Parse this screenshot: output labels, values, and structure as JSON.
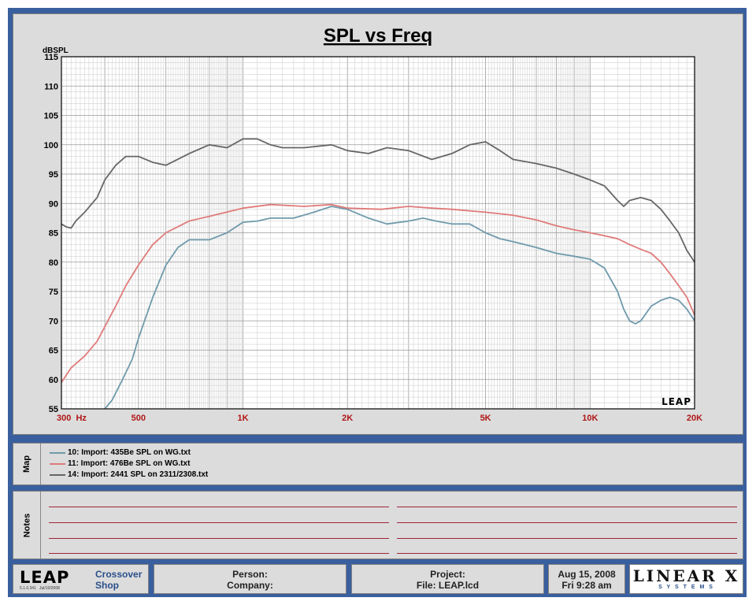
{
  "chart_data": {
    "type": "line",
    "title": "SPL vs Freq",
    "ylabel": "dBSPL",
    "xscale": "log",
    "xlim": [
      300,
      20000
    ],
    "ylim": [
      55,
      115
    ],
    "grid": true,
    "yticks": [
      55,
      60,
      65,
      70,
      75,
      80,
      85,
      90,
      95,
      100,
      105,
      110,
      115
    ],
    "xtick_labels": [
      {
        "value": 300,
        "label": "300  Hz"
      },
      {
        "value": 500,
        "label": "500"
      },
      {
        "value": 1000,
        "label": "1K"
      },
      {
        "value": 2000,
        "label": "2K"
      },
      {
        "value": 5000,
        "label": "5K"
      },
      {
        "value": 10000,
        "label": "10K"
      },
      {
        "value": 20000,
        "label": "20K"
      }
    ],
    "watermark": "LEAP",
    "series": [
      {
        "name": "10: Import: 435Be SPL on WG.txt",
        "color": "#6f9aab",
        "x": [
          400,
          420,
          450,
          480,
          500,
          550,
          600,
          650,
          700,
          800,
          900,
          1000,
          1100,
          1200,
          1400,
          1600,
          1800,
          2000,
          2300,
          2600,
          3000,
          3300,
          3600,
          4000,
          4500,
          5000,
          5500,
          6000,
          7000,
          8000,
          9000,
          10000,
          11000,
          12000,
          12500,
          13000,
          13500,
          14000,
          15000,
          16000,
          17000,
          18000,
          19000,
          20000
        ],
        "y": [
          55,
          56.5,
          60,
          63.5,
          67,
          74,
          79.5,
          82.5,
          83.8,
          83.8,
          85,
          86.8,
          87,
          87.5,
          87.5,
          88.5,
          89.5,
          89,
          87.5,
          86.5,
          87,
          87.5,
          87,
          86.5,
          86.5,
          85,
          84,
          83.5,
          82.5,
          81.5,
          81,
          80.5,
          79,
          75,
          72,
          70,
          69.5,
          70,
          72.5,
          73.5,
          74,
          73.5,
          72,
          70
        ]
      },
      {
        "name": "11: Import: 476Be SPL on WG.txt",
        "color": "#e07a7a",
        "x": [
          300,
          320,
          350,
          380,
          400,
          430,
          460,
          500,
          550,
          600,
          700,
          800,
          1000,
          1200,
          1500,
          1800,
          2000,
          2500,
          3000,
          3500,
          4000,
          5000,
          6000,
          7000,
          8000,
          9000,
          10000,
          11000,
          12000,
          13000,
          14000,
          15000,
          16000,
          17000,
          18000,
          19000,
          20000
        ],
        "y": [
          59.5,
          62,
          64,
          66.5,
          69,
          72.5,
          76,
          79.5,
          83,
          85,
          87,
          87.8,
          89.2,
          89.8,
          89.5,
          89.8,
          89.2,
          89,
          89.5,
          89.2,
          89,
          88.5,
          88,
          87.2,
          86.2,
          85.5,
          85,
          84.5,
          84,
          83,
          82.2,
          81.5,
          80,
          78,
          76,
          74,
          71
        ]
      },
      {
        "name": "14: Import: 2441 SPL on 2311/2308.txt",
        "color": "#666666",
        "x": [
          300,
          310,
          320,
          330,
          350,
          380,
          400,
          430,
          460,
          500,
          550,
          600,
          700,
          800,
          900,
          1000,
          1100,
          1200,
          1300,
          1500,
          1800,
          2000,
          2300,
          2600,
          3000,
          3500,
          4000,
          4500,
          5000,
          5500,
          6000,
          7000,
          8000,
          9000,
          10000,
          11000,
          12000,
          12500,
          13000,
          14000,
          15000,
          16000,
          17000,
          18000,
          19000,
          20000
        ],
        "y": [
          86.5,
          86,
          85.8,
          87,
          88.5,
          91,
          94,
          96.5,
          98,
          98,
          97,
          96.5,
          98.5,
          100,
          99.5,
          101,
          101,
          100,
          99.5,
          99.5,
          100,
          99,
          98.5,
          99.5,
          99,
          97.5,
          98.5,
          100,
          100.5,
          99,
          97.5,
          96.8,
          96,
          95,
          94,
          93,
          90.5,
          89.5,
          90.5,
          91,
          90.5,
          89,
          87,
          85,
          82,
          80
        ]
      }
    ]
  },
  "map": {
    "label": "Map",
    "items": [
      {
        "text": "10: Import: 435Be SPL on WG.txt",
        "color": "#6f9aab"
      },
      {
        "text": "11: Import: 476Be SPL on WG.txt",
        "color": "#e07a7a"
      },
      {
        "text": "14: Import: 2441 SPL on 2311/2308.txt",
        "color": "#666666"
      }
    ]
  },
  "notes": {
    "label": "Notes"
  },
  "footer": {
    "logo": "LEAP",
    "version": "5.1.0.341",
    "version_date": "Jul/10/2008",
    "app_line1": "Crossover",
    "app_line2": "Shop",
    "person_label": "Person:",
    "company_label": "Company:",
    "project_label": "Project:",
    "file_label": "File: LEAP.lcd",
    "date": "Aug 15, 2008",
    "time": "Fri  9:28 am",
    "brand_top": "LINEAR X",
    "brand_bottom": "S Y S T E M S"
  },
  "colors": {
    "frame": "#3a5f9e",
    "panel": "#dcdcdc",
    "tick_label": "#b01616",
    "note_line": "#a0243a"
  }
}
